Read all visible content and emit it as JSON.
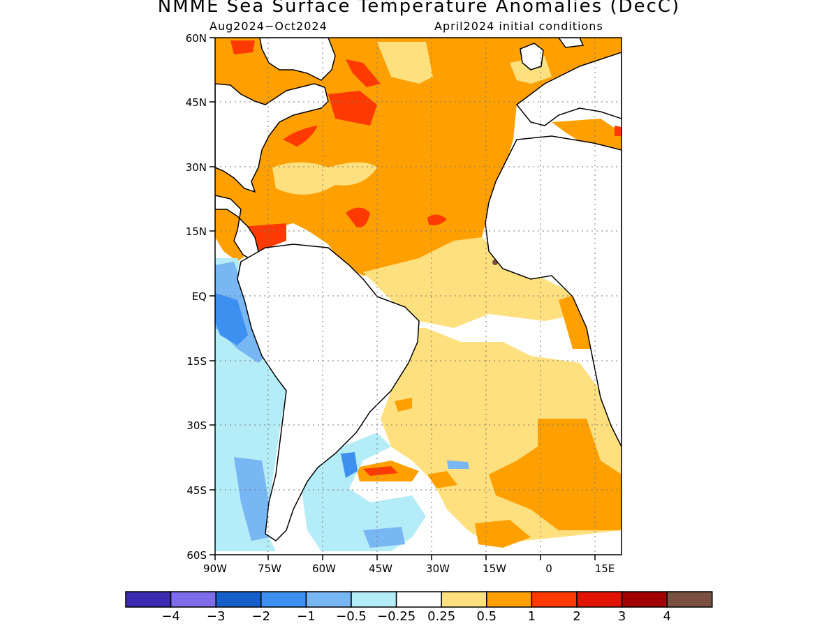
{
  "title": "NMME Sea Surface Temperature Anomalies (DecC)",
  "period": "Aug2024−Oct2024",
  "initial_conditions": "April2024 initial conditions",
  "lat_labels": [
    "60N",
    "45N",
    "30N",
    "15N",
    "EQ",
    "15S",
    "30S",
    "45S",
    "60S"
  ],
  "lon_labels": [
    "90W",
    "75W",
    "60W",
    "45W",
    "30W",
    "15W",
    "0",
    "15E"
  ],
  "colorbar": {
    "colors": [
      "#3a2bb0",
      "#7f6ce8",
      "#1560c8",
      "#3d8ff0",
      "#78b6f4",
      "#b4ecf8",
      "#ffffff",
      "#ffe07f",
      "#ffa000",
      "#ff3a00",
      "#e01400",
      "#a00000",
      "#7a5040"
    ],
    "labels": [
      "−4",
      "−3",
      "−2",
      "−1",
      "−0.5",
      "−0.25",
      "0.25",
      "0.5",
      "1",
      "2",
      "3",
      "4"
    ]
  },
  "colors": {
    "light_yellow": "#ffe07f",
    "orange": "#ffa000",
    "red_orange": "#ff3a00",
    "light_blue": "#b4ecf8",
    "sky_blue": "#78b6f4",
    "blue": "#3d8ff0",
    "brown": "#7a5040"
  }
}
